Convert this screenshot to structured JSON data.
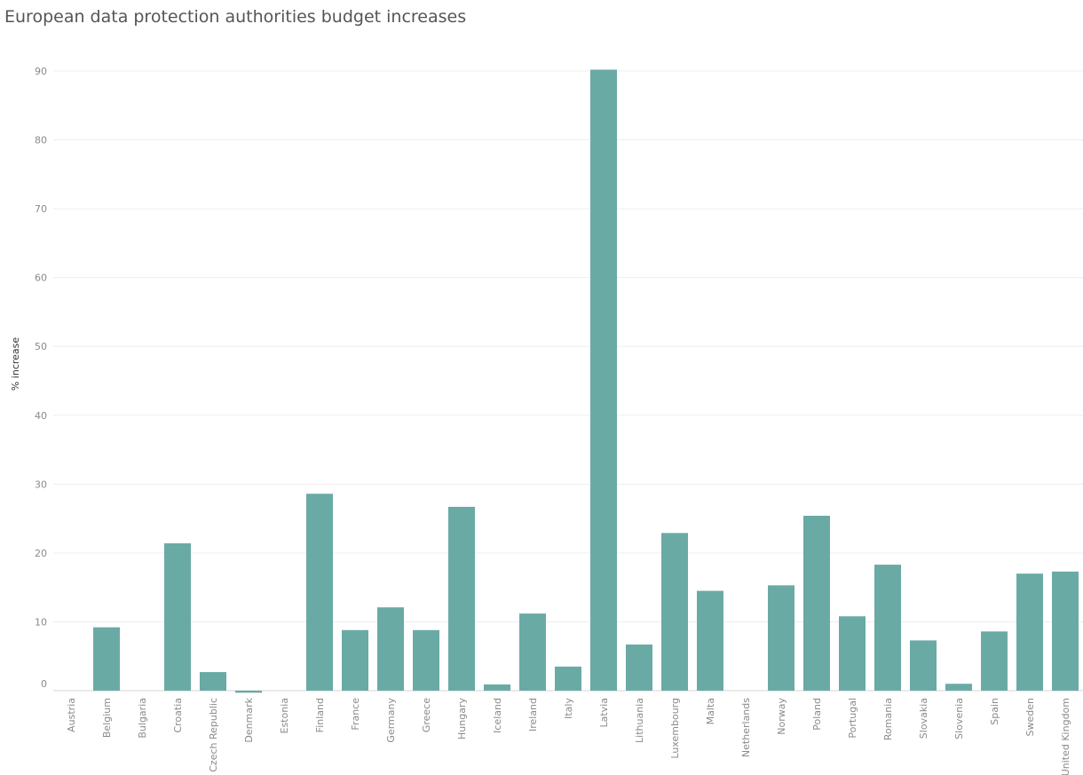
{
  "chart_data": {
    "type": "bar",
    "title": "European data protection authorities budget increases",
    "xlabel": "",
    "ylabel": "% increase",
    "ylim": [
      0,
      90
    ],
    "yticks": [
      0,
      10,
      20,
      30,
      40,
      50,
      60,
      70,
      80,
      90
    ],
    "grid": true,
    "bar_color": "#6aaaa5",
    "categories": [
      "Austria",
      "Belgium",
      "Bulgaria",
      "Croatia",
      "Czech Republic",
      "Denmark",
      "Estonia",
      "Finland",
      "France",
      "Germany",
      "Greece",
      "Hungary",
      "Iceland",
      "Ireland",
      "Italy",
      "Latvia",
      "Lithuania",
      "Luxembourg",
      "Malta",
      "Netherlands",
      "Norway",
      "Poland",
      "Portugal",
      "Romania",
      "Slovakia",
      "Slovenia",
      "Spain",
      "Sweden",
      "United Kingdom"
    ],
    "values": [
      0,
      9.2,
      0,
      21.4,
      2.7,
      -0.3,
      0,
      28.6,
      8.8,
      12.1,
      8.8,
      26.7,
      0.9,
      11.2,
      3.5,
      90.2,
      6.7,
      22.9,
      14.5,
      0,
      15.3,
      25.4,
      10.8,
      18.3,
      7.3,
      1.0,
      8.6,
      17.0,
      17.3
    ]
  }
}
